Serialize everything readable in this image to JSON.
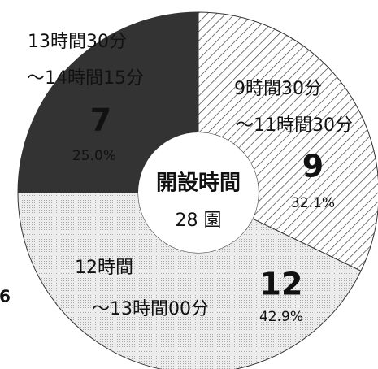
{
  "chart_data": {
    "type": "donut",
    "categories": [
      [
        "9時間30分",
        "〜11時間30分"
      ],
      [
        "12時間",
        "〜13時間00分"
      ],
      [
        "13時間30分",
        "〜14時間15分"
      ]
    ],
    "values": [
      9,
      12,
      7
    ],
    "percent_labels": [
      "32.1%",
      "42.9%",
      "25.0%"
    ],
    "colors": [
      "#ffffff",
      "#e4e4e4",
      "#333333"
    ],
    "patterns": [
      "diagonal",
      "dotted",
      "solid"
    ],
    "center_title": "開設時間",
    "center_subtitle": "28 園",
    "annotation": "6"
  }
}
